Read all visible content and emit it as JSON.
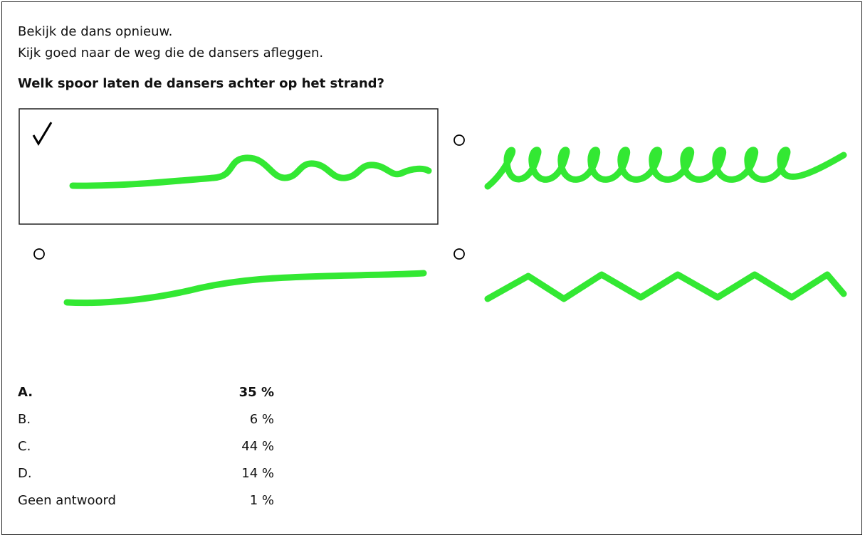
{
  "instructions": [
    "Bekijk de dans opnieuw.",
    "Kijk goed naar de weg die de dansers afleggen."
  ],
  "question": "Welk spoor laten de dansers achter op het strand?",
  "results": {
    "rows": [
      [
        "A.",
        "35 %"
      ],
      [
        "B.",
        "6 %"
      ],
      [
        "C.",
        "44 %"
      ],
      [
        "D.",
        "14 %"
      ],
      [
        "Geen antwoord",
        "1 %"
      ]
    ]
  }
}
